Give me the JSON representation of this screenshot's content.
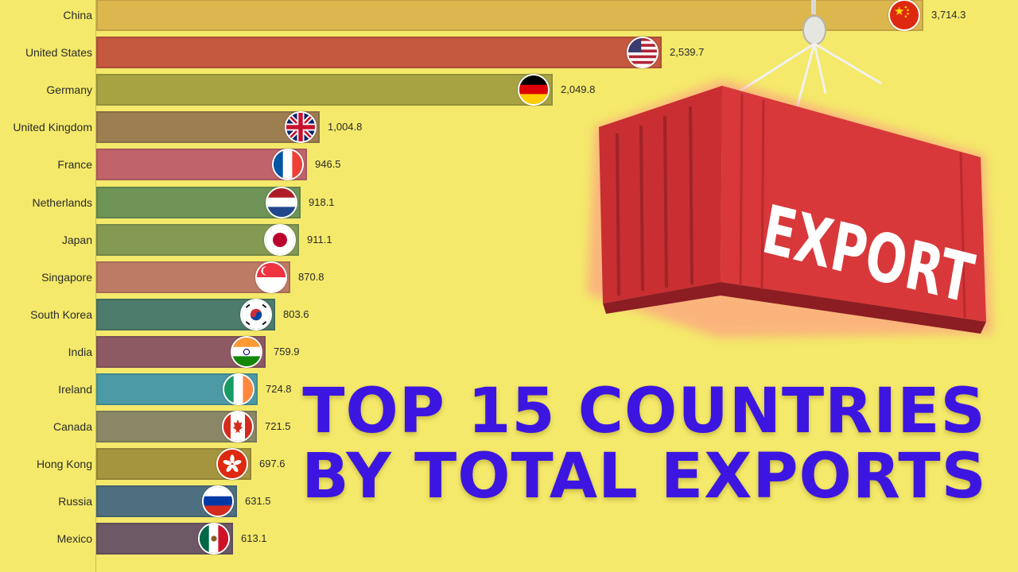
{
  "headline": {
    "line1": "TOP 15 COUNTRIES",
    "line2": "BY TOTAL EXPORTS"
  },
  "container_sign": "EXPORT",
  "colors": {
    "background": "#f4e96a",
    "title": "#3c16e0",
    "container": "#d8383a"
  },
  "chart_data": {
    "type": "bar",
    "orientation": "horizontal",
    "categories": [
      "China",
      "United States",
      "Germany",
      "United Kingdom",
      "France",
      "Netherlands",
      "Japan",
      "Singapore",
      "South Korea",
      "India",
      "Ireland",
      "Canada",
      "Hong Kong",
      "Russia",
      "Mexico"
    ],
    "values": [
      3714.3,
      2539.7,
      2049.8,
      1004.8,
      946.5,
      918.1,
      911.1,
      870.8,
      803.6,
      759.9,
      724.8,
      721.5,
      697.6,
      631.5,
      613.1
    ],
    "value_labels": [
      "3,714.3",
      "2,539.7",
      "2,049.8",
      "1,004.8",
      "946.5",
      "918.1",
      "911.1",
      "870.8",
      "803.6",
      "759.9",
      "724.8",
      "721.5",
      "697.6",
      "631.5",
      "613.1"
    ],
    "bar_colors": [
      "#dcb74e",
      "#c4593f",
      "#a7a343",
      "#9c7e50",
      "#c0646a",
      "#6e9457",
      "#849a53",
      "#bd7a64",
      "#4d7c6c",
      "#8d5a63",
      "#4b9aa6",
      "#8a8767",
      "#a6953f",
      "#4e6f80",
      "#6d5865"
    ],
    "flags": [
      "china",
      "usa",
      "germany",
      "uk",
      "france",
      "netherlands",
      "japan",
      "singapore",
      "south-korea",
      "india",
      "ireland",
      "canada",
      "hong-kong",
      "russia",
      "mexico"
    ],
    "xlim": [
      0,
      3900
    ],
    "grid": false,
    "legend": "none"
  }
}
